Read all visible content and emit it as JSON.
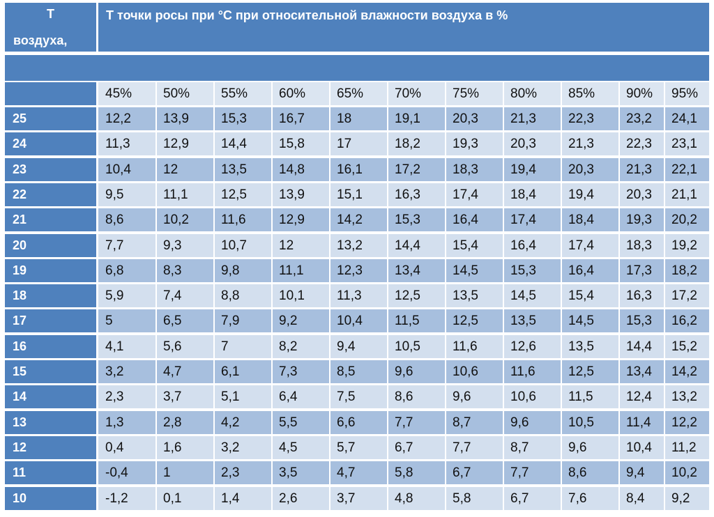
{
  "header": {
    "corner_line1": "Т",
    "corner_line2": "воздуха,",
    "title": "Т точки росы при °С при относительной влажности воздуха в %"
  },
  "humidity_columns": [
    "45%",
    "50%",
    "55%",
    "60%",
    "65%",
    "70%",
    "75%",
    "80%",
    "85%",
    "90%",
    "95%"
  ],
  "rows": [
    {
      "t": "25",
      "values": [
        "12,2",
        "13,9",
        "15,3",
        "16,7",
        "18",
        "19,1",
        "20,3",
        "21,3",
        "22,3",
        "23,2",
        "24,1"
      ]
    },
    {
      "t": "24",
      "values": [
        "11,3",
        "12,9",
        "14,4",
        "15,8",
        "17",
        "18,2",
        "19,3",
        "20,3",
        "21,3",
        "22,3",
        "23,1"
      ]
    },
    {
      "t": "23",
      "values": [
        "10,4",
        "12",
        "13,5",
        "14,8",
        "16,1",
        "17,2",
        "18,3",
        "19,4",
        "20,3",
        "21,3",
        "22,1"
      ]
    },
    {
      "t": "22",
      "values": [
        "9,5",
        "11,1",
        "12,5",
        "13,9",
        "15,1",
        "16,3",
        "17,4",
        "18,4",
        "19,4",
        "20,3",
        "21,1"
      ]
    },
    {
      "t": "21",
      "values": [
        "8,6",
        "10,2",
        "11,6",
        "12,9",
        "14,2",
        "15,3",
        "16,4",
        "17,4",
        "18,4",
        "19,3",
        "20,2"
      ]
    },
    {
      "t": "20",
      "values": [
        "7,7",
        "9,3",
        "10,7",
        "12",
        "13,2",
        "14,4",
        "15,4",
        "16,4",
        "17,4",
        "18,3",
        "19,2"
      ]
    },
    {
      "t": "19",
      "values": [
        "6,8",
        "8,3",
        "9,8",
        "11,1",
        "12,3",
        "13,4",
        "14,5",
        "15,3",
        "16,4",
        "17,3",
        "18,2"
      ]
    },
    {
      "t": "18",
      "values": [
        "5,9",
        "7,4",
        "8,8",
        "10,1",
        "11,3",
        "12,5",
        "13,5",
        "14,5",
        "15,4",
        "16,3",
        "17,2"
      ]
    },
    {
      "t": "17",
      "values": [
        "5",
        "6,5",
        "7,9",
        "9,2",
        "10,4",
        "11,5",
        "12,5",
        "13,5",
        "14,5",
        "15,3",
        "16,2"
      ]
    },
    {
      "t": "16",
      "values": [
        "4,1",
        "5,6",
        "7",
        "8,2",
        "9,4",
        "10,5",
        "11,6",
        "12,6",
        "13,5",
        "14,4",
        "15,2"
      ]
    },
    {
      "t": "15",
      "values": [
        "3,2",
        "4,7",
        "6,1",
        "7,3",
        "8,5",
        "9,6",
        "10,6",
        "11,6",
        "12,5",
        "13,4",
        "14,2"
      ]
    },
    {
      "t": "14",
      "values": [
        "2,3",
        "3,7",
        "5,1",
        "6,4",
        "7,5",
        "8,6",
        "9,6",
        "10,6",
        "11,5",
        "12,4",
        "13,2"
      ]
    },
    {
      "t": "13",
      "values": [
        "1,3",
        "2,8",
        "4,2",
        "5,5",
        "6,6",
        "7,7",
        "8,7",
        "9,6",
        "10,5",
        "11,4",
        "12,2"
      ]
    },
    {
      "t": "12",
      "values": [
        "0,4",
        "1,6",
        "3,2",
        "4,5",
        "5,7",
        "6,7",
        "7,7",
        "8,7",
        "9,6",
        "10,4",
        "11,2"
      ]
    },
    {
      "t": "11",
      "values": [
        "-0,4",
        "1",
        "2,3",
        "3,5",
        "4,7",
        "5,8",
        "6,7",
        "7,7",
        "8,6",
        "9,4",
        "10,2"
      ]
    },
    {
      "t": "10",
      "values": [
        "-1,2",
        "0,1",
        "1,4",
        "2,6",
        "3,7",
        "4,8",
        "5,8",
        "6,7",
        "7,6",
        "8,4",
        "9,2"
      ]
    }
  ]
}
